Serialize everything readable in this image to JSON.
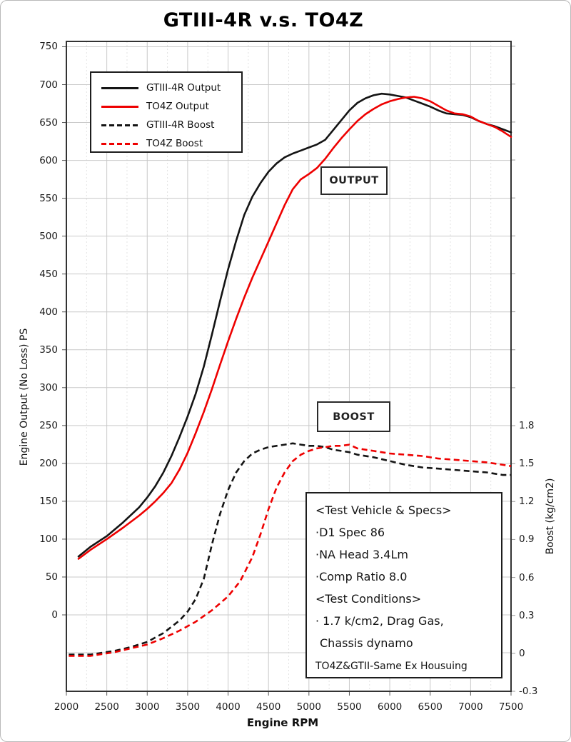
{
  "title": "GTIII-4R v.s. TO4Z",
  "annotations": {
    "output_label": "OUTPUT",
    "boost_label": "BOOST"
  },
  "spec_box": {
    "lines": [
      "<Test Vehicle & Specs>",
      "·D1 Spec 86",
      "·NA Head 3.4Lm",
      "·Comp Ratio 8.0",
      "<Test Conditions>",
      "· 1.7 k/cm2, Drag Gas,",
      "Chassis dynamo",
      "TO4Z&GTII-Same Ex Housuing"
    ]
  },
  "chart_data": {
    "type": "line",
    "title": "GTIII-4R v.s. TO4Z",
    "xlabel": "Engine RPM",
    "ylabel_left": "Engine Output (No Loss) PS",
    "ylabel_right": "Boost (kg/cm2)",
    "x_range": [
      2000,
      7500
    ],
    "x_ticks": [
      2000,
      2500,
      3000,
      3500,
      4000,
      4500,
      5000,
      5500,
      6000,
      6500,
      7000,
      7500
    ],
    "x_minor_step": 250,
    "y_left_ticks": [
      0,
      50,
      100,
      150,
      200,
      250,
      300,
      350,
      400,
      450,
      500,
      550,
      600,
      650,
      700,
      750
    ],
    "y_left_range": [
      -100,
      755
    ],
    "y_right_ticks": [
      {
        "v": -0.3,
        "label": "-0.3"
      },
      {
        "v": 0,
        "label": "0"
      },
      {
        "v": 0.3,
        "label": "0.3"
      },
      {
        "v": 0.6,
        "label": "0.6"
      },
      {
        "v": 0.9,
        "label": "0.9"
      },
      {
        "v": 1.2,
        "label": "1.2"
      },
      {
        "v": 1.5,
        "label": "1.5"
      },
      {
        "v": 1.8,
        "label": "1.8"
      }
    ],
    "grid": true,
    "legend_position": "upper-left",
    "colors": {
      "black_series": "#141414",
      "red_series": "#ee0000",
      "grid_major": "#c9c9c9",
      "grid_minor": "#e2e2e2",
      "plot_border": "#333333"
    },
    "series": [
      {
        "name": "GTIII-4R Output",
        "axis": "left",
        "color": "#141414",
        "dash": "solid",
        "points": [
          [
            2150,
            77
          ],
          [
            2300,
            90
          ],
          [
            2500,
            104
          ],
          [
            2700,
            122
          ],
          [
            2900,
            142
          ],
          [
            3000,
            155
          ],
          [
            3100,
            170
          ],
          [
            3200,
            188
          ],
          [
            3300,
            210
          ],
          [
            3400,
            235
          ],
          [
            3500,
            262
          ],
          [
            3600,
            292
          ],
          [
            3700,
            328
          ],
          [
            3800,
            370
          ],
          [
            3900,
            414
          ],
          [
            4000,
            456
          ],
          [
            4100,
            494
          ],
          [
            4200,
            528
          ],
          [
            4300,
            552
          ],
          [
            4400,
            570
          ],
          [
            4500,
            585
          ],
          [
            4600,
            596
          ],
          [
            4700,
            604
          ],
          [
            4800,
            609
          ],
          [
            4900,
            613
          ],
          [
            5000,
            617
          ],
          [
            5100,
            621
          ],
          [
            5200,
            627
          ],
          [
            5300,
            640
          ],
          [
            5400,
            653
          ],
          [
            5500,
            666
          ],
          [
            5600,
            676
          ],
          [
            5700,
            682
          ],
          [
            5800,
            686
          ],
          [
            5900,
            688
          ],
          [
            6000,
            687
          ],
          [
            6100,
            685
          ],
          [
            6200,
            683
          ],
          [
            6300,
            679
          ],
          [
            6400,
            675
          ],
          [
            6500,
            671
          ],
          [
            6600,
            666
          ],
          [
            6700,
            662
          ],
          [
            6800,
            661
          ],
          [
            6900,
            660
          ],
          [
            7000,
            657
          ],
          [
            7100,
            652
          ],
          [
            7200,
            648
          ],
          [
            7300,
            645
          ],
          [
            7400,
            641
          ],
          [
            7500,
            637
          ]
        ]
      },
      {
        "name": "TO4Z Output",
        "axis": "left",
        "color": "#ee0000",
        "dash": "solid",
        "points": [
          [
            2150,
            74
          ],
          [
            2300,
            86
          ],
          [
            2500,
            100
          ],
          [
            2700,
            115
          ],
          [
            2900,
            131
          ],
          [
            3000,
            140
          ],
          [
            3100,
            150
          ],
          [
            3200,
            161
          ],
          [
            3300,
            174
          ],
          [
            3400,
            192
          ],
          [
            3500,
            214
          ],
          [
            3600,
            240
          ],
          [
            3700,
            268
          ],
          [
            3800,
            298
          ],
          [
            3900,
            330
          ],
          [
            4000,
            361
          ],
          [
            4100,
            391
          ],
          [
            4200,
            419
          ],
          [
            4300,
            445
          ],
          [
            4400,
            469
          ],
          [
            4500,
            493
          ],
          [
            4600,
            517
          ],
          [
            4700,
            541
          ],
          [
            4800,
            562
          ],
          [
            4900,
            575
          ],
          [
            5000,
            582
          ],
          [
            5100,
            590
          ],
          [
            5200,
            602
          ],
          [
            5300,
            616
          ],
          [
            5400,
            629
          ],
          [
            5500,
            641
          ],
          [
            5600,
            652
          ],
          [
            5700,
            661
          ],
          [
            5800,
            668
          ],
          [
            5900,
            674
          ],
          [
            6000,
            678
          ],
          [
            6100,
            681
          ],
          [
            6200,
            683
          ],
          [
            6300,
            684
          ],
          [
            6400,
            682
          ],
          [
            6500,
            678
          ],
          [
            6600,
            672
          ],
          [
            6700,
            666
          ],
          [
            6800,
            662
          ],
          [
            6900,
            661
          ],
          [
            7000,
            658
          ],
          [
            7100,
            652
          ],
          [
            7200,
            648
          ],
          [
            7300,
            644
          ],
          [
            7400,
            638
          ],
          [
            7500,
            631
          ]
        ]
      },
      {
        "name": "GTIII-4R Boost",
        "axis": "right",
        "color": "#141414",
        "dash": "dashed",
        "points": [
          [
            2030,
            -0.01
          ],
          [
            2300,
            -0.01
          ],
          [
            2600,
            0.02
          ],
          [
            2800,
            0.05
          ],
          [
            3000,
            0.09
          ],
          [
            3200,
            0.16
          ],
          [
            3400,
            0.26
          ],
          [
            3500,
            0.33
          ],
          [
            3600,
            0.43
          ],
          [
            3700,
            0.59
          ],
          [
            3800,
            0.86
          ],
          [
            3900,
            1.1
          ],
          [
            4000,
            1.29
          ],
          [
            4100,
            1.43
          ],
          [
            4200,
            1.52
          ],
          [
            4300,
            1.58
          ],
          [
            4400,
            1.61
          ],
          [
            4500,
            1.63
          ],
          [
            4600,
            1.64
          ],
          [
            4700,
            1.65
          ],
          [
            4800,
            1.66
          ],
          [
            4900,
            1.65
          ],
          [
            5000,
            1.64
          ],
          [
            5100,
            1.64
          ],
          [
            5200,
            1.63
          ],
          [
            5300,
            1.61
          ],
          [
            5400,
            1.6
          ],
          [
            5500,
            1.59
          ],
          [
            5600,
            1.57
          ],
          [
            5800,
            1.55
          ],
          [
            6000,
            1.52
          ],
          [
            6200,
            1.49
          ],
          [
            6400,
            1.47
          ],
          [
            6600,
            1.46
          ],
          [
            6800,
            1.45
          ],
          [
            7000,
            1.44
          ],
          [
            7200,
            1.43
          ],
          [
            7400,
            1.41
          ],
          [
            7500,
            1.41
          ]
        ]
      },
      {
        "name": "TO4Z Boost",
        "axis": "right",
        "color": "#ee0000",
        "dash": "dashed",
        "points": [
          [
            2030,
            -0.02
          ],
          [
            2300,
            -0.02
          ],
          [
            2600,
            0.01
          ],
          [
            2800,
            0.04
          ],
          [
            3000,
            0.07
          ],
          [
            3200,
            0.12
          ],
          [
            3400,
            0.18
          ],
          [
            3600,
            0.25
          ],
          [
            3800,
            0.34
          ],
          [
            4000,
            0.45
          ],
          [
            4150,
            0.57
          ],
          [
            4300,
            0.76
          ],
          [
            4400,
            0.94
          ],
          [
            4500,
            1.14
          ],
          [
            4600,
            1.31
          ],
          [
            4700,
            1.43
          ],
          [
            4800,
            1.52
          ],
          [
            4900,
            1.57
          ],
          [
            5000,
            1.6
          ],
          [
            5100,
            1.62
          ],
          [
            5200,
            1.63
          ],
          [
            5300,
            1.64
          ],
          [
            5400,
            1.64
          ],
          [
            5500,
            1.65
          ],
          [
            5600,
            1.62
          ],
          [
            5700,
            1.61
          ],
          [
            5800,
            1.6
          ],
          [
            6000,
            1.58
          ],
          [
            6200,
            1.57
          ],
          [
            6400,
            1.56
          ],
          [
            6600,
            1.54
          ],
          [
            6800,
            1.53
          ],
          [
            7000,
            1.52
          ],
          [
            7200,
            1.51
          ],
          [
            7400,
            1.49
          ],
          [
            7500,
            1.48
          ]
        ]
      }
    ]
  }
}
